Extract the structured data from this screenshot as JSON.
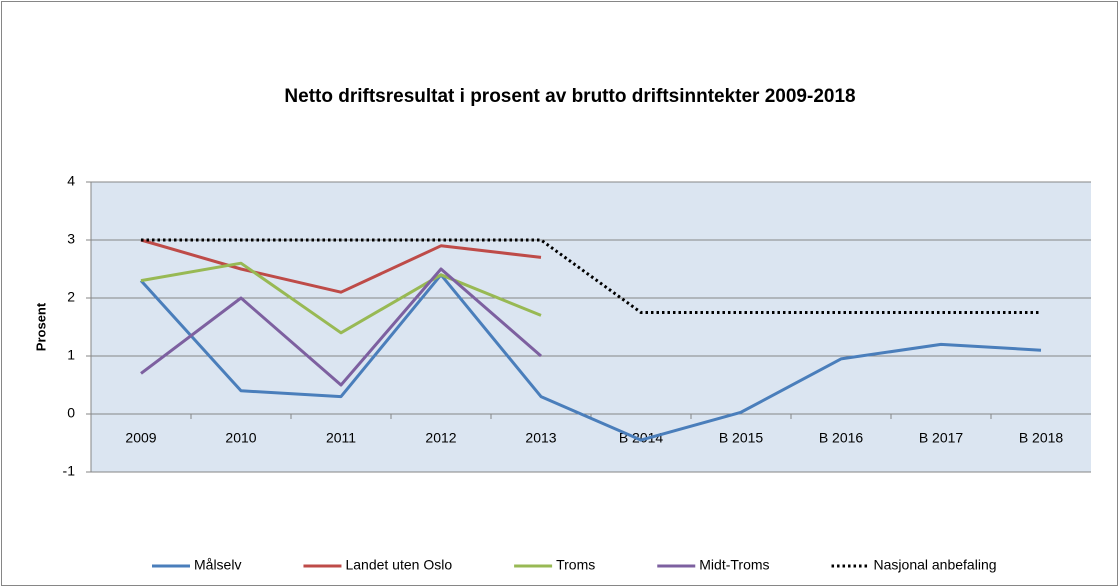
{
  "chart_data": {
    "type": "line",
    "title": "Netto driftsresultat i prosent av brutto driftsinntekter 2009-2018",
    "y_label": "Prosent",
    "categories": [
      "2009",
      "2010",
      "2011",
      "2012",
      "2013",
      "B 2014",
      "B 2015",
      "B 2016",
      "B 2017",
      "B 2018"
    ],
    "series": [
      {
        "name": "Målselv",
        "color": "#4a7ebb",
        "style": "solid",
        "values": [
          2.3,
          0.4,
          0.3,
          2.4,
          0.3,
          -0.45,
          0.03,
          0.95,
          1.2,
          1.1
        ]
      },
      {
        "name": "Landet uten Oslo",
        "color": "#be4b48",
        "style": "solid",
        "values": [
          3.0,
          2.5,
          2.1,
          2.9,
          2.7,
          null,
          null,
          null,
          null,
          null
        ]
      },
      {
        "name": "Troms",
        "color": "#98b954",
        "style": "solid",
        "values": [
          2.3,
          2.6,
          1.4,
          2.4,
          1.7,
          null,
          null,
          null,
          null,
          null
        ]
      },
      {
        "name": "Midt-Troms",
        "color": "#7d60a0",
        "style": "solid",
        "values": [
          0.7,
          2.0,
          0.5,
          2.5,
          1.0,
          null,
          null,
          null,
          null,
          null
        ]
      },
      {
        "name": "Nasjonal anbefaling",
        "color": "#000000",
        "style": "dotted",
        "values": [
          3,
          3,
          3,
          3,
          3,
          1.75,
          1.75,
          1.75,
          1.75,
          1.75
        ]
      }
    ],
    "ylim": [
      -1,
      4
    ],
    "yticks": [
      -1,
      0,
      1,
      2,
      3,
      4
    ],
    "grid": true,
    "legend": "bottom"
  }
}
